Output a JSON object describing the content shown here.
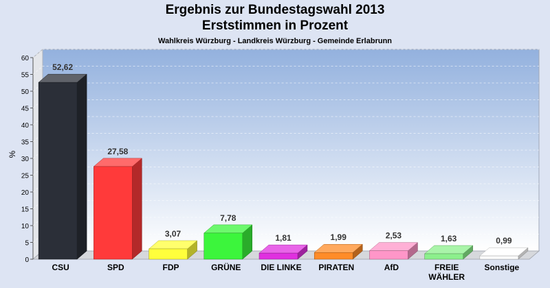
{
  "chart_data": {
    "type": "bar",
    "title": "Ergebnis zur Bundestagswahl 2013",
    "title2": "Erststimmen in Prozent",
    "subtitle": "Wahlkreis Würzburg - Landkreis Würzburg - Gemeinde Erlabrunn",
    "ylabel": "%",
    "xlabel": "",
    "ylim": [
      0,
      60
    ],
    "yticks": [
      0,
      5,
      10,
      15,
      20,
      25,
      30,
      35,
      40,
      45,
      50,
      55,
      60
    ],
    "categories": [
      "CSU",
      "SPD",
      "FDP",
      "GRÜNE",
      "DIE LINKE",
      "PIRATEN",
      "AfD",
      "FREIE WÄHLER",
      "Sonstige"
    ],
    "category_lines": [
      [
        "CSU"
      ],
      [
        "SPD"
      ],
      [
        "FDP"
      ],
      [
        "GRÜNE"
      ],
      [
        "DIE LINKE"
      ],
      [
        "PIRATEN"
      ],
      [
        "AfD"
      ],
      [
        "FREIE",
        "WÄHLER"
      ],
      [
        "Sonstige"
      ]
    ],
    "values": [
      52.62,
      27.58,
      3.07,
      7.78,
      1.81,
      1.99,
      2.53,
      1.63,
      0.99
    ],
    "value_labels": [
      "52,62",
      "27,58",
      "3,07",
      "7,78",
      "1,81",
      "1,99",
      "2,53",
      "1,63",
      "0,99"
    ],
    "colors": [
      "#2b2f38",
      "#ff3a3a",
      "#ffff3c",
      "#3cf53c",
      "#e030e0",
      "#ff8c28",
      "#ff96c8",
      "#8cf08c",
      "#ffffff"
    ],
    "grid": true,
    "legend": "none",
    "background_gradient": [
      "#93b1de",
      "#ffffff"
    ]
  }
}
